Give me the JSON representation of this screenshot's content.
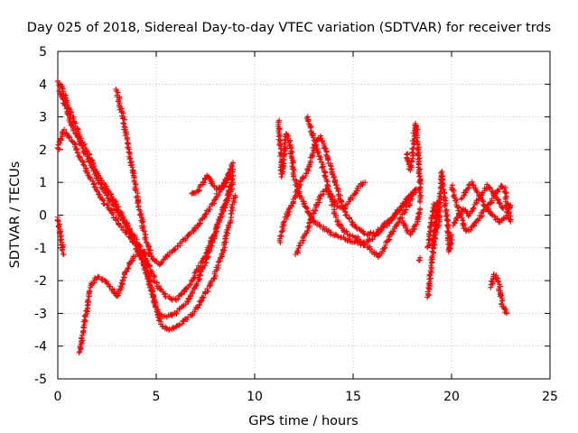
{
  "chart_data": {
    "type": "scatter",
    "title": "Day 025 of 2018, Sidereal Day-to-day VTEC variation (SDTVAR) for receiver trds",
    "xlabel": "GPS time / hours",
    "ylabel": "SDTVAR / TECUs",
    "xlim": [
      0,
      25
    ],
    "ylim": [
      -5,
      5
    ],
    "x_ticks": [
      0,
      5,
      10,
      15,
      20,
      25
    ],
    "y_ticks": [
      -5,
      -4,
      -3,
      -2,
      -1,
      0,
      1,
      2,
      3,
      4,
      5
    ],
    "grid": true,
    "marker": "+",
    "color": "#ff0000",
    "series": [
      {
        "name": "s1",
        "points": [
          [
            0.0,
            4.1
          ],
          [
            0.2,
            3.9
          ],
          [
            0.5,
            3.4
          ],
          [
            0.8,
            2.9
          ],
          [
            1.2,
            2.3
          ],
          [
            1.6,
            1.8
          ],
          [
            2.0,
            1.3
          ],
          [
            2.5,
            0.8
          ],
          [
            3.0,
            0.3
          ],
          [
            3.5,
            -0.3
          ],
          [
            4.0,
            -0.9
          ],
          [
            4.4,
            -1.6
          ],
          [
            4.8,
            -2.4
          ],
          [
            5.1,
            -3.0
          ],
          [
            5.5,
            -3.1
          ],
          [
            6.0,
            -3.0
          ],
          [
            6.5,
            -2.7
          ],
          [
            7.0,
            -2.2
          ],
          [
            7.4,
            -1.6
          ],
          [
            7.8,
            -0.9
          ],
          [
            8.2,
            -0.2
          ],
          [
            8.6,
            0.5
          ],
          [
            8.9,
            1.2
          ]
        ]
      },
      {
        "name": "s2",
        "points": [
          [
            0.1,
            3.8
          ],
          [
            0.4,
            3.3
          ],
          [
            0.8,
            2.6
          ],
          [
            1.3,
            2.0
          ],
          [
            1.8,
            1.4
          ],
          [
            2.3,
            0.8
          ],
          [
            2.8,
            0.3
          ],
          [
            3.4,
            -0.2
          ],
          [
            4.0,
            -0.8
          ],
          [
            4.6,
            -1.5
          ],
          [
            5.0,
            -2.1
          ],
          [
            5.5,
            -2.5
          ],
          [
            6.0,
            -2.6
          ],
          [
            6.5,
            -2.3
          ],
          [
            7.0,
            -1.8
          ],
          [
            7.5,
            -1.2
          ],
          [
            8.0,
            -0.5
          ],
          [
            8.5,
            0.3
          ],
          [
            8.9,
            1.0
          ]
        ]
      },
      {
        "name": "s3",
        "points": [
          [
            0.0,
            2.0
          ],
          [
            0.3,
            2.6
          ],
          [
            0.7,
            2.3
          ],
          [
            1.1,
            1.8
          ],
          [
            1.6,
            1.2
          ],
          [
            2.1,
            0.6
          ],
          [
            2.7,
            0.1
          ],
          [
            3.3,
            -0.4
          ],
          [
            3.9,
            -0.9
          ],
          [
            4.5,
            -1.6
          ],
          [
            4.9,
            -2.6
          ],
          [
            5.2,
            -3.3
          ],
          [
            5.5,
            -3.5
          ],
          [
            6.0,
            -3.4
          ],
          [
            6.5,
            -3.2
          ],
          [
            7.0,
            -2.9
          ],
          [
            7.5,
            -2.4
          ],
          [
            8.0,
            -1.8
          ],
          [
            8.4,
            -1.1
          ],
          [
            8.7,
            -0.3
          ],
          [
            9.0,
            0.6
          ]
        ]
      },
      {
        "name": "s4",
        "points": [
          [
            3.0,
            3.8
          ],
          [
            3.3,
            3.0
          ],
          [
            3.6,
            2.0
          ],
          [
            3.9,
            1.0
          ],
          [
            4.2,
            0.0
          ],
          [
            4.5,
            -0.8
          ],
          [
            4.8,
            -1.3
          ],
          [
            5.2,
            -1.5
          ],
          [
            5.6,
            -1.2
          ],
          [
            6.0,
            -1.0
          ],
          [
            6.5,
            -0.7
          ],
          [
            7.0,
            -0.4
          ],
          [
            7.5,
            0.0
          ],
          [
            7.9,
            0.4
          ],
          [
            8.3,
            0.8
          ],
          [
            8.7,
            1.1
          ],
          [
            8.9,
            1.4
          ]
        ]
      },
      {
        "name": "s5",
        "points": [
          [
            0.0,
            -0.1
          ],
          [
            0.1,
            -0.5
          ],
          [
            0.2,
            -0.9
          ],
          [
            0.3,
            -1.2
          ]
        ]
      },
      {
        "name": "s6",
        "points": [
          [
            1.1,
            -4.2
          ],
          [
            1.3,
            -3.5
          ],
          [
            1.5,
            -2.8
          ],
          [
            1.7,
            -2.1
          ],
          [
            2.0,
            -1.9
          ],
          [
            2.4,
            -2.0
          ],
          [
            2.8,
            -2.3
          ],
          [
            3.0,
            -2.5
          ],
          [
            3.2,
            -2.2
          ],
          [
            3.5,
            -1.7
          ],
          [
            3.8,
            -1.3
          ],
          [
            4.2,
            -1.1
          ],
          [
            4.6,
            -1.2
          ]
        ]
      },
      {
        "name": "s7",
        "points": [
          [
            6.8,
            0.7
          ],
          [
            7.1,
            0.7
          ],
          [
            7.3,
            0.9
          ],
          [
            7.6,
            1.2
          ],
          [
            7.8,
            1.0
          ],
          [
            8.1,
            0.8
          ],
          [
            8.4,
            0.9
          ],
          [
            8.7,
            1.3
          ],
          [
            8.9,
            1.6
          ]
        ]
      },
      {
        "name": "s8",
        "points": [
          [
            11.2,
            2.9
          ],
          [
            11.3,
            2.0
          ],
          [
            11.4,
            1.2
          ],
          [
            11.6,
            2.5
          ],
          [
            11.8,
            2.2
          ],
          [
            12.0,
            1.2
          ],
          [
            12.3,
            0.6
          ],
          [
            12.6,
            0.2
          ],
          [
            13.0,
            -0.2
          ],
          [
            13.5,
            -0.4
          ],
          [
            14.0,
            -0.6
          ],
          [
            14.5,
            -0.7
          ],
          [
            15.0,
            -0.8
          ],
          [
            15.5,
            -0.9
          ],
          [
            16.0,
            -0.7
          ],
          [
            16.5,
            -0.4
          ],
          [
            17.0,
            -0.1
          ],
          [
            17.5,
            0.3
          ],
          [
            17.9,
            0.6
          ],
          [
            18.2,
            0.7
          ]
        ]
      },
      {
        "name": "s9",
        "points": [
          [
            11.3,
            -0.8
          ],
          [
            11.5,
            -0.2
          ],
          [
            11.8,
            0.2
          ],
          [
            12.2,
            0.8
          ],
          [
            12.5,
            1.2
          ],
          [
            12.8,
            1.5
          ],
          [
            13.0,
            2.1
          ],
          [
            13.3,
            2.4
          ],
          [
            13.5,
            2.2
          ],
          [
            13.8,
            1.6
          ],
          [
            14.1,
            1.0
          ],
          [
            14.4,
            0.4
          ],
          [
            14.7,
            0.0
          ],
          [
            15.0,
            -0.3
          ],
          [
            15.4,
            -0.5
          ],
          [
            15.8,
            -0.6
          ],
          [
            16.2,
            -0.5
          ],
          [
            16.6,
            -0.3
          ],
          [
            17.0,
            -0.1
          ],
          [
            17.4,
            0.2
          ],
          [
            17.8,
            0.5
          ],
          [
            18.2,
            0.8
          ]
        ]
      },
      {
        "name": "s10",
        "points": [
          [
            12.1,
            -1.2
          ],
          [
            12.4,
            -0.8
          ],
          [
            12.7,
            -0.4
          ],
          [
            13.0,
            0.1
          ],
          [
            13.3,
            0.5
          ],
          [
            13.6,
            0.8
          ],
          [
            13.9,
            0.6
          ],
          [
            14.2,
            0.3
          ],
          [
            14.5,
            0.2
          ],
          [
            14.8,
            0.4
          ],
          [
            15.1,
            0.7
          ],
          [
            15.4,
            0.9
          ],
          [
            15.6,
            1.0
          ]
        ]
      },
      {
        "name": "s11",
        "points": [
          [
            12.7,
            3.0
          ],
          [
            12.9,
            2.6
          ],
          [
            13.2,
            2.0
          ],
          [
            13.5,
            1.4
          ],
          [
            13.8,
            0.7
          ],
          [
            14.1,
            0.0
          ],
          [
            14.4,
            -0.4
          ],
          [
            14.8,
            -0.6
          ],
          [
            15.2,
            -0.7
          ],
          [
            15.6,
            -0.9
          ],
          [
            16.0,
            -1.1
          ],
          [
            16.3,
            -1.3
          ],
          [
            16.6,
            -1.0
          ],
          [
            16.9,
            -0.6
          ],
          [
            17.2,
            -0.3
          ],
          [
            17.6,
            0.1
          ],
          [
            18.0,
            0.5
          ]
        ]
      },
      {
        "name": "s12",
        "points": [
          [
            17.7,
            1.9
          ],
          [
            17.8,
            1.6
          ],
          [
            17.9,
            1.4
          ],
          [
            18.0,
            1.6
          ],
          [
            18.1,
            2.5
          ],
          [
            18.2,
            2.8
          ],
          [
            18.3,
            2.0
          ],
          [
            18.4,
            1.0
          ],
          [
            18.4,
            0.4
          ]
        ]
      },
      {
        "name": "s13",
        "points": [
          [
            17.5,
            -0.2
          ],
          [
            17.7,
            -0.4
          ],
          [
            17.9,
            -0.6
          ],
          [
            18.1,
            -0.4
          ],
          [
            18.3,
            -0.2
          ],
          [
            18.4,
            0.2
          ]
        ]
      },
      {
        "name": "s14",
        "points": [
          [
            18.3,
            -1.4
          ],
          [
            18.4,
            -1.3
          ]
        ]
      },
      {
        "name": "s15",
        "points": [
          [
            18.8,
            -2.5
          ],
          [
            18.9,
            -2.0
          ],
          [
            19.0,
            -1.4
          ],
          [
            19.1,
            -0.7
          ],
          [
            19.2,
            -0.2
          ],
          [
            19.3,
            0.4
          ],
          [
            19.1,
            -1.0
          ]
        ]
      },
      {
        "name": "s16",
        "points": [
          [
            18.8,
            -1.0
          ],
          [
            18.9,
            -0.5
          ],
          [
            19.0,
            -0.1
          ],
          [
            19.1,
            0.3
          ],
          [
            19.2,
            0.0
          ]
        ]
      },
      {
        "name": "s17",
        "points": [
          [
            19.3,
            -0.4
          ],
          [
            19.4,
            0.3
          ],
          [
            19.5,
            1.3
          ],
          [
            19.6,
            0.8
          ],
          [
            19.7,
            0.2
          ],
          [
            19.8,
            -0.3
          ],
          [
            19.9,
            -1.1
          ],
          [
            20.0,
            -0.6
          ]
        ]
      },
      {
        "name": "s18",
        "points": [
          [
            20.0,
            0.9
          ],
          [
            20.2,
            0.5
          ],
          [
            20.4,
            0.1
          ],
          [
            20.6,
            -0.3
          ],
          [
            20.8,
            -0.5
          ],
          [
            21.0,
            -0.4
          ],
          [
            21.3,
            -0.2
          ],
          [
            21.6,
            0.1
          ],
          [
            21.9,
            0.3
          ],
          [
            22.2,
            0.6
          ],
          [
            22.5,
            0.9
          ],
          [
            22.7,
            0.8
          ],
          [
            22.8,
            0.4
          ],
          [
            22.9,
            0.1
          ],
          [
            23.0,
            -0.2
          ]
        ]
      },
      {
        "name": "s19",
        "points": [
          [
            20.1,
            -0.3
          ],
          [
            20.3,
            -0.1
          ],
          [
            20.6,
            0.2
          ],
          [
            20.9,
            0.0
          ],
          [
            21.2,
            0.3
          ],
          [
            21.5,
            0.6
          ],
          [
            21.8,
            0.9
          ],
          [
            22.0,
            0.8
          ],
          [
            22.3,
            0.5
          ],
          [
            22.6,
            0.2
          ],
          [
            22.9,
            0.3
          ]
        ]
      },
      {
        "name": "s20",
        "points": [
          [
            20.5,
            0.5
          ],
          [
            20.8,
            0.8
          ],
          [
            21.0,
            1.0
          ],
          [
            21.3,
            0.7
          ],
          [
            21.6,
            0.4
          ],
          [
            21.9,
            0.1
          ],
          [
            22.2,
            -0.1
          ],
          [
            22.5,
            -0.2
          ],
          [
            22.8,
            0.0
          ],
          [
            23.0,
            0.3
          ]
        ]
      },
      {
        "name": "s21",
        "points": [
          [
            22.0,
            -2.2
          ],
          [
            22.2,
            -1.8
          ],
          [
            22.4,
            -2.1
          ],
          [
            22.5,
            -2.5
          ],
          [
            22.6,
            -2.8
          ],
          [
            22.7,
            -2.9
          ],
          [
            22.8,
            -3.0
          ]
        ]
      }
    ]
  }
}
